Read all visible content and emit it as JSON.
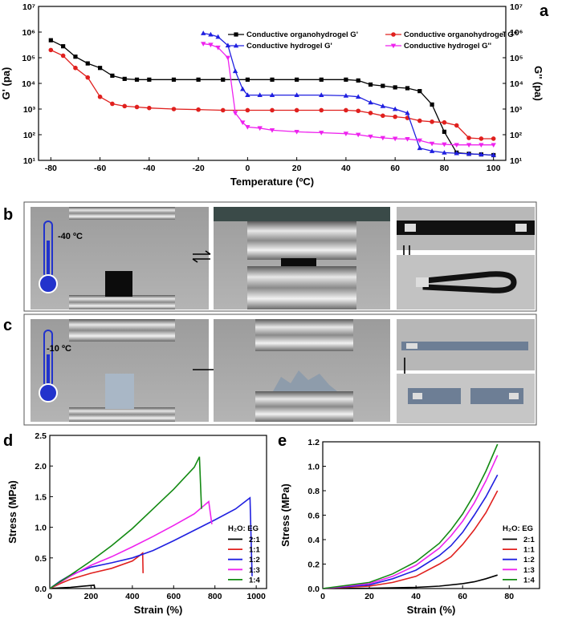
{
  "panels": {
    "a": "a",
    "b": "b",
    "c": "c",
    "d": "d",
    "e": "e"
  },
  "photos": {
    "b_temp": "-40 ºC",
    "c_temp": "-10 ºC"
  },
  "colors": {
    "black": "#000000",
    "red": "#e0201e",
    "blue": "#2020e0",
    "magenta": "#ee22ee",
    "green": "#138a13"
  },
  "chart_data": [
    {
      "id": "a",
      "type": "line",
      "xlabel": "Temperature (ºC)",
      "ylabel": "G' (pa)",
      "ylabel_right": "G'' (pa)",
      "yscale": "log",
      "xlim": [
        -85,
        105
      ],
      "ylim": [
        10,
        10000000
      ],
      "xticks": [
        -80,
        -60,
        -40,
        -20,
        0,
        20,
        40,
        60,
        80,
        100
      ],
      "yticks": [
        {
          "value": 10,
          "label": "10¹"
        },
        {
          "value": 100,
          "label": "10²"
        },
        {
          "value": 1000,
          "label": "10³"
        },
        {
          "value": 10000,
          "label": "10⁴"
        },
        {
          "value": 100000,
          "label": "10⁵"
        },
        {
          "value": 1000000,
          "label": "10⁶"
        },
        {
          "value": 10000000,
          "label": "10⁷"
        }
      ],
      "legend_position": "top-right",
      "series": [
        {
          "name": "Conductive organohydrogel G'",
          "color": "#000000",
          "marker": "square",
          "x": [
            -80,
            -75,
            -70,
            -65,
            -60,
            -55,
            -50,
            -45,
            -40,
            -30,
            -20,
            -10,
            0,
            10,
            20,
            30,
            40,
            45,
            50,
            55,
            60,
            65,
            70,
            75,
            80,
            85,
            90,
            95,
            100
          ],
          "y": [
            480000,
            280000,
            110000,
            60000,
            40000,
            20000,
            15000,
            14000,
            14000,
            14000,
            14000,
            14000,
            14000,
            14000,
            14000,
            14000,
            14000,
            13000,
            9000,
            8000,
            7000,
            6500,
            5000,
            1500,
            130,
            20,
            18,
            17,
            16
          ]
        },
        {
          "name": "Conductive organohydrogel G''",
          "color": "#e0201e",
          "marker": "circle",
          "x": [
            -80,
            -75,
            -70,
            -65,
            -60,
            -55,
            -50,
            -45,
            -40,
            -30,
            -20,
            -10,
            0,
            10,
            20,
            30,
            40,
            45,
            50,
            55,
            60,
            65,
            70,
            75,
            80,
            85,
            90,
            95,
            100
          ],
          "y": [
            200000,
            120000,
            40000,
            17000,
            3000,
            1600,
            1300,
            1200,
            1100,
            1000,
            950,
            900,
            900,
            900,
            900,
            900,
            900,
            850,
            700,
            550,
            500,
            450,
            350,
            320,
            300,
            230,
            75,
            70,
            70
          ]
        },
        {
          "name": "Conductive hydrogel G'",
          "color": "#2020e0",
          "marker": "triangle-up",
          "x": [
            -18,
            -15,
            -12,
            -8,
            -5,
            -2,
            0,
            5,
            10,
            20,
            30,
            40,
            45,
            50,
            55,
            60,
            65,
            70,
            75,
            80,
            85,
            90,
            95,
            100
          ],
          "y": [
            900000,
            800000,
            650000,
            300000,
            30000,
            6000,
            3500,
            3500,
            3500,
            3500,
            3500,
            3300,
            3000,
            1800,
            1300,
            1000,
            700,
            30,
            23,
            20,
            19,
            18,
            17,
            16
          ]
        },
        {
          "name": "Conductive hydrogel G''",
          "color": "#ee22ee",
          "marker": "triangle-down",
          "x": [
            -18,
            -15,
            -12,
            -8,
            -5,
            -2,
            0,
            5,
            10,
            20,
            30,
            40,
            45,
            50,
            55,
            60,
            65,
            70,
            75,
            80,
            85,
            90,
            95,
            100
          ],
          "y": [
            350000,
            320000,
            250000,
            100000,
            700,
            300,
            200,
            180,
            150,
            130,
            120,
            110,
            100,
            85,
            75,
            70,
            68,
            60,
            45,
            42,
            40,
            40,
            40,
            40
          ]
        }
      ]
    },
    {
      "id": "d",
      "type": "line",
      "xlabel": "Strain (%)",
      "ylabel": "Stress (MPa)",
      "xlim": [
        0,
        1050
      ],
      "ylim": [
        0,
        2.5
      ],
      "xticks": [
        0,
        200,
        400,
        600,
        800,
        1000
      ],
      "yticks": [
        0.0,
        0.5,
        1.0,
        1.5,
        2.0,
        2.5
      ],
      "legend_title": "H₂O: EG",
      "legend_position": "bottom-right",
      "series": [
        {
          "name": "2:1",
          "color": "#000000",
          "x": [
            0,
            50,
            100,
            150,
            200,
            215,
            218
          ],
          "y": [
            0,
            0.01,
            0.02,
            0.035,
            0.05,
            0.055,
            0.0
          ]
        },
        {
          "name": "1:1",
          "color": "#e0201e",
          "x": [
            0,
            50,
            100,
            200,
            300,
            400,
            440,
            450,
            452
          ],
          "y": [
            0,
            0.08,
            0.15,
            0.25,
            0.33,
            0.45,
            0.55,
            0.58,
            0.25
          ]
        },
        {
          "name": "1:2",
          "color": "#2020e0",
          "x": [
            0,
            50,
            100,
            200,
            300,
            400,
            500,
            600,
            700,
            800,
            900,
            970,
            980
          ],
          "y": [
            0,
            0.12,
            0.22,
            0.35,
            0.42,
            0.5,
            0.62,
            0.78,
            0.95,
            1.12,
            1.3,
            1.48,
            0.2
          ]
        },
        {
          "name": "1:3",
          "color": "#ee22ee",
          "x": [
            0,
            100,
            200,
            300,
            400,
            500,
            600,
            700,
            770,
            785
          ],
          "y": [
            0,
            0.2,
            0.38,
            0.52,
            0.68,
            0.85,
            1.03,
            1.22,
            1.42,
            1.05
          ]
        },
        {
          "name": "1:4",
          "color": "#138a13",
          "x": [
            0,
            100,
            200,
            300,
            400,
            500,
            600,
            700,
            725,
            735
          ],
          "y": [
            0,
            0.22,
            0.45,
            0.7,
            0.98,
            1.3,
            1.62,
            1.98,
            2.15,
            1.3
          ]
        }
      ]
    },
    {
      "id": "e",
      "type": "line",
      "xlabel": "Strain (%)",
      "ylabel": "Stress (MPa)",
      "xlim": [
        0,
        93
      ],
      "ylim": [
        0,
        1.2
      ],
      "xticks": [
        0,
        20,
        40,
        60,
        80
      ],
      "yticks": [
        0.0,
        0.2,
        0.4,
        0.6,
        0.8,
        1.0,
        1.2
      ],
      "legend_title": "H₂O: EG",
      "legend_position": "bottom-right",
      "series": [
        {
          "name": "2:1",
          "color": "#000000",
          "x": [
            0,
            20,
            40,
            50,
            60,
            65,
            70,
            75
          ],
          "y": [
            0,
            0.002,
            0.01,
            0.02,
            0.04,
            0.055,
            0.08,
            0.11
          ]
        },
        {
          "name": "1:1",
          "color": "#e0201e",
          "x": [
            0,
            20,
            30,
            40,
            50,
            55,
            60,
            65,
            70,
            75
          ],
          "y": [
            0,
            0.02,
            0.05,
            0.1,
            0.2,
            0.26,
            0.36,
            0.48,
            0.62,
            0.8
          ]
        },
        {
          "name": "1:2",
          "color": "#2020e0",
          "x": [
            0,
            20,
            30,
            40,
            50,
            55,
            60,
            65,
            70,
            75
          ],
          "y": [
            0,
            0.03,
            0.08,
            0.15,
            0.27,
            0.35,
            0.46,
            0.6,
            0.75,
            0.93
          ]
        },
        {
          "name": "1:3",
          "color": "#ee22ee",
          "x": [
            0,
            20,
            30,
            40,
            50,
            55,
            60,
            65,
            70,
            75
          ],
          "y": [
            0,
            0.04,
            0.1,
            0.19,
            0.33,
            0.43,
            0.55,
            0.7,
            0.88,
            1.09
          ]
        },
        {
          "name": "1:4",
          "color": "#138a13",
          "x": [
            0,
            20,
            30,
            40,
            50,
            55,
            60,
            65,
            70,
            75
          ],
          "y": [
            0,
            0.05,
            0.12,
            0.22,
            0.37,
            0.48,
            0.61,
            0.77,
            0.96,
            1.18
          ]
        }
      ]
    }
  ]
}
